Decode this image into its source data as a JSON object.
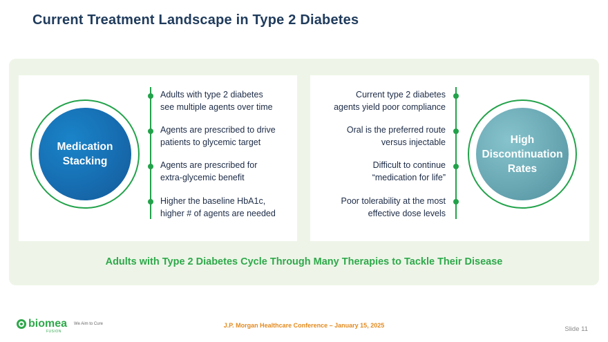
{
  "slide": {
    "title": "Current Treatment Landscape in Type 2 Diabetes",
    "left_circle": {
      "line1": "Medication",
      "line2": "Stacking"
    },
    "right_circle": {
      "line1": "High",
      "line2": "Discontinuation",
      "line3": "Rates"
    },
    "left_bullets": [
      {
        "line1": "Adults with type 2 diabetes",
        "line2": "see multiple agents over time"
      },
      {
        "line1": "Agents are prescribed to drive",
        "line2": "patients to glycemic target"
      },
      {
        "line1": "Agents are prescribed for",
        "line2": "extra-glycemic benefit"
      },
      {
        "line1": "Higher the baseline HbA1c,",
        "line2": "higher # of agents are needed"
      }
    ],
    "right_bullets": [
      {
        "line1": "Current type 2 diabetes",
        "line2": "agents yield poor compliance"
      },
      {
        "line1": "Oral is the preferred route",
        "line2": "versus injectable"
      },
      {
        "line1": "Difficult to continue",
        "line2": "“medication for life”"
      },
      {
        "line1": "Poor tolerability at the most",
        "line2": "effective dose levels"
      }
    ],
    "tagline": "Adults with Type 2 Diabetes Cycle Through Many Therapies to Tackle Their Disease"
  },
  "footer": {
    "logo_text": "biomea",
    "logo_sub": "FUSION",
    "logo_tagline": "We Aim to Cure",
    "conference": "J.P. Morgan Healthcare Conference – January 15, 2025",
    "slide_number": "Slide 11"
  },
  "colors": {
    "title": "#1f3b5c",
    "accent_green": "#22a24a",
    "circle_blue": "#176fb3",
    "circle_teal": "#6aa8b4",
    "footer_orange": "#e38a1e"
  }
}
